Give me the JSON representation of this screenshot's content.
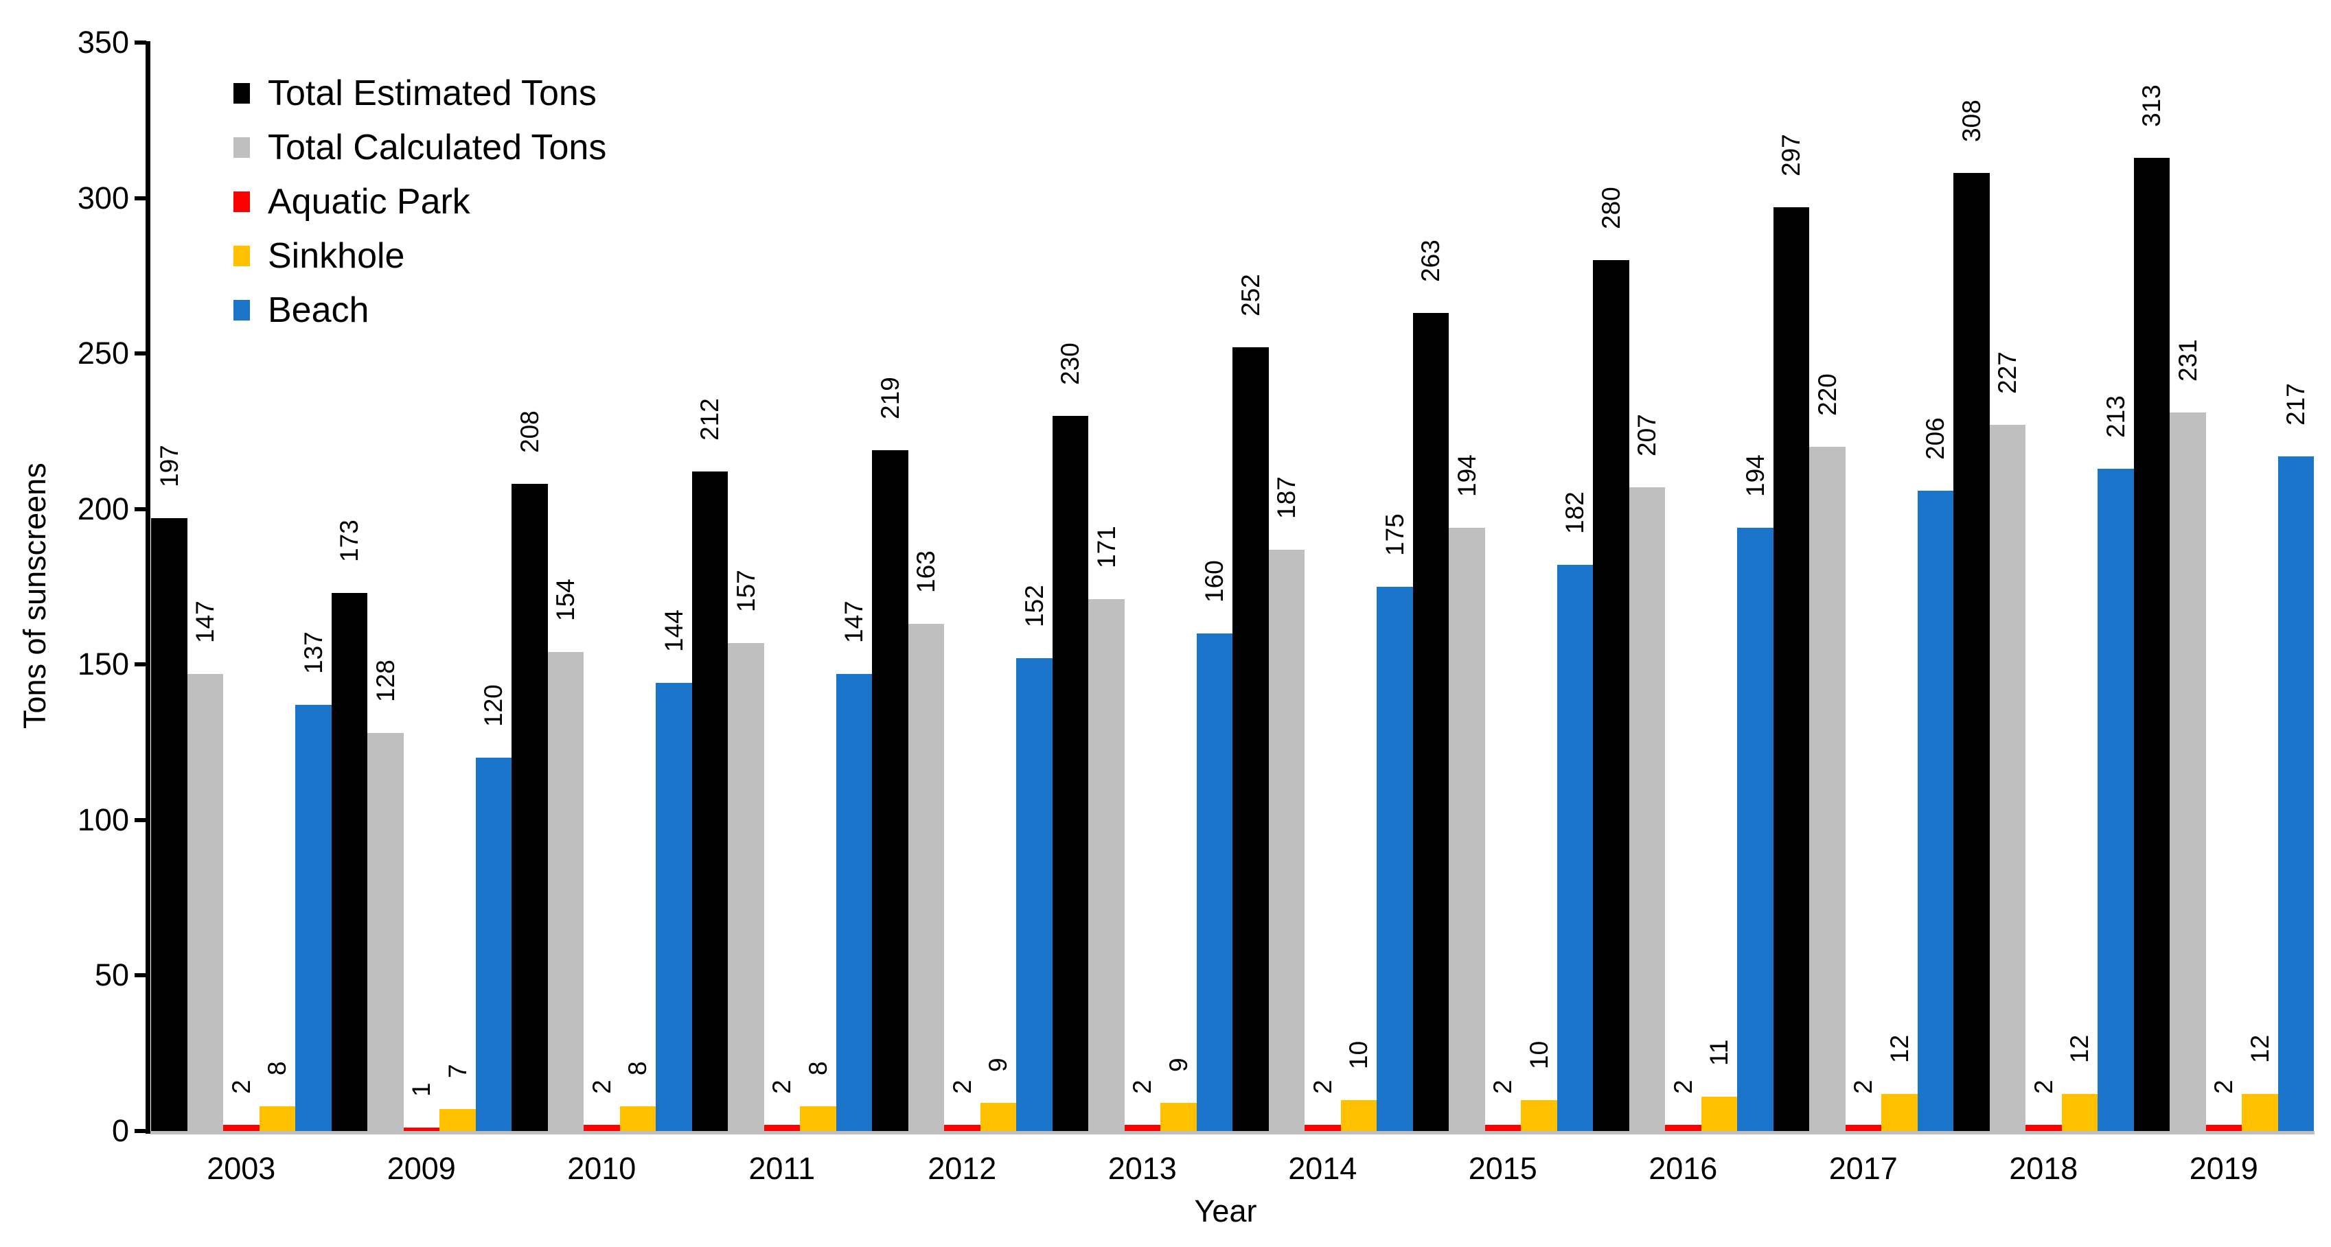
{
  "chart_data": {
    "type": "bar",
    "title": "",
    "xlabel": "Year",
    "ylabel": "Tons of sunscreens",
    "ylim": [
      0,
      350
    ],
    "yticks": [
      0,
      50,
      100,
      150,
      200,
      250,
      300,
      350
    ],
    "grid": false,
    "legend_position": "top-left",
    "value_labels_rotated": true,
    "categories": [
      "2003",
      "2009",
      "2010",
      "2011",
      "2012",
      "2013",
      "2014",
      "2015",
      "2016",
      "2017",
      "2018",
      "2019"
    ],
    "series": [
      {
        "key": "total-estimated-tons",
        "name": "Total Estimated Tons",
        "color": "#000000",
        "values": [
          197,
          173,
          208,
          212,
          219,
          230,
          252,
          263,
          280,
          297,
          308,
          313
        ]
      },
      {
        "key": "total-calculated-tons",
        "name": "Total Calculated Tons",
        "color": "#bfbfbf",
        "values": [
          147,
          128,
          154,
          157,
          163,
          171,
          187,
          194,
          207,
          220,
          227,
          231
        ]
      },
      {
        "key": "aquatic-park",
        "name": "Aquatic Park",
        "color": "#ff0000",
        "values": [
          2,
          1,
          2,
          2,
          2,
          2,
          2,
          2,
          2,
          2,
          2,
          2
        ]
      },
      {
        "key": "sinkhole",
        "name": "Sinkhole",
        "color": "#ffc000",
        "values": [
          8,
          7,
          8,
          8,
          9,
          9,
          10,
          10,
          11,
          12,
          12,
          12
        ]
      },
      {
        "key": "beach",
        "name": "Beach",
        "color": "#1a74ca",
        "values": [
          137,
          120,
          144,
          147,
          152,
          160,
          175,
          182,
          194,
          206,
          213,
          217
        ]
      }
    ],
    "axis_colors": {
      "y_axis": "#000000",
      "x_axis_baseline": "#bfbfbf"
    }
  }
}
